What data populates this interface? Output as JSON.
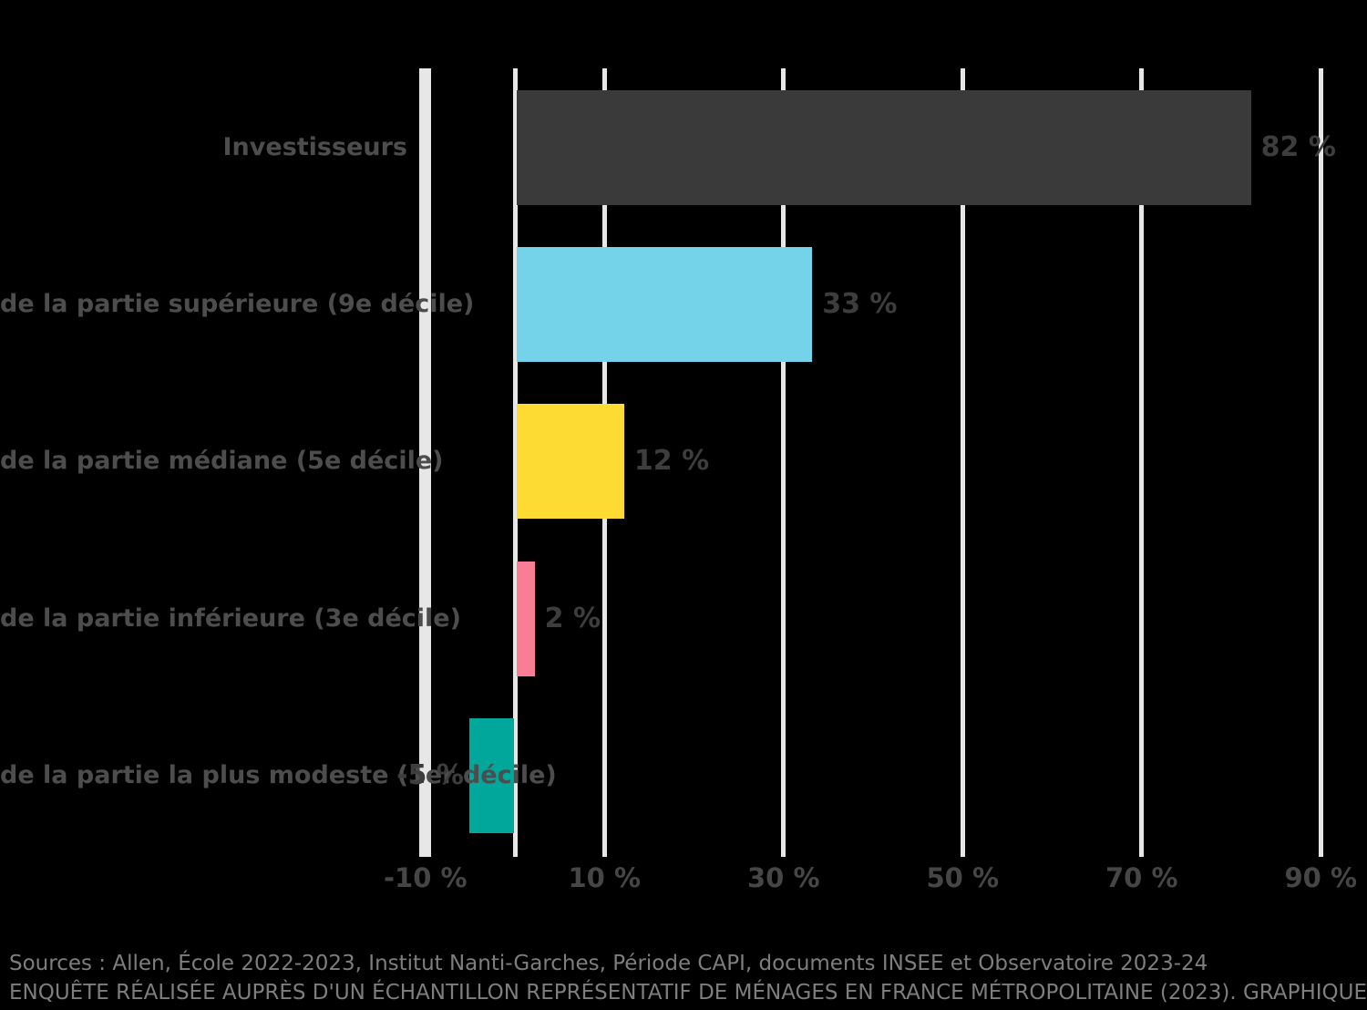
{
  "chart_data": {
    "type": "bar",
    "orientation": "horizontal",
    "title": "",
    "xlabel": "",
    "ylabel": "",
    "grid": "vertical-gridlines-on",
    "legend": "none",
    "axis_range_pct": [
      -12,
      93
    ],
    "categories": [
      "Investisseurs",
      "de la partie supérieure (9e décile)",
      "de la partie médiane (5e décile)",
      "de la partie inférieure (3e décile)",
      "de la partie la plus modeste (1er décile)"
    ],
    "values": [
      82,
      33,
      12,
      2,
      -5
    ],
    "value_labels": [
      "82 %",
      "33 %",
      "12 %",
      "2 %",
      "-5 %"
    ],
    "bar_colors": [
      "#3a3a3a",
      "#74d3e9",
      "#fedb33",
      "#f97e95",
      "#00a79a"
    ],
    "bar_color_names": [
      "charcoal",
      "sky-blue",
      "yellow",
      "pink",
      "teal"
    ],
    "xticks": [
      {
        "value": -10,
        "label": "-10 %"
      },
      {
        "value": 10,
        "label": "10 %"
      },
      {
        "value": 30,
        "label": "30 %"
      },
      {
        "value": 50,
        "label": "50 %"
      },
      {
        "value": 70,
        "label": "70 %"
      },
      {
        "value": 90,
        "label": "90 %"
      }
    ],
    "zero_line": true,
    "gridline_color": "#e7e7e7"
  },
  "source": {
    "line1": "Sources : Allen, École 2022-2023, Institut Nanti-Garches, Période CAPI, documents INSEE et Observatoire 2023-24",
    "line2": "ENQUÊTE RÉALISÉE AUPRÈS D'UN ÉCHANTILLON REPRÉSENTATIF DE MÉNAGES EN FRANCE MÉTROPOLITAINE (2023). GRAPHIQUE"
  },
  "colors": {
    "background": "#000000",
    "gridline": "#e7e7e7",
    "category_text": "#4d4d4d",
    "value_text": "#3d3d3d",
    "tick_text": "#464646",
    "source_text": "#7e7e7e"
  }
}
